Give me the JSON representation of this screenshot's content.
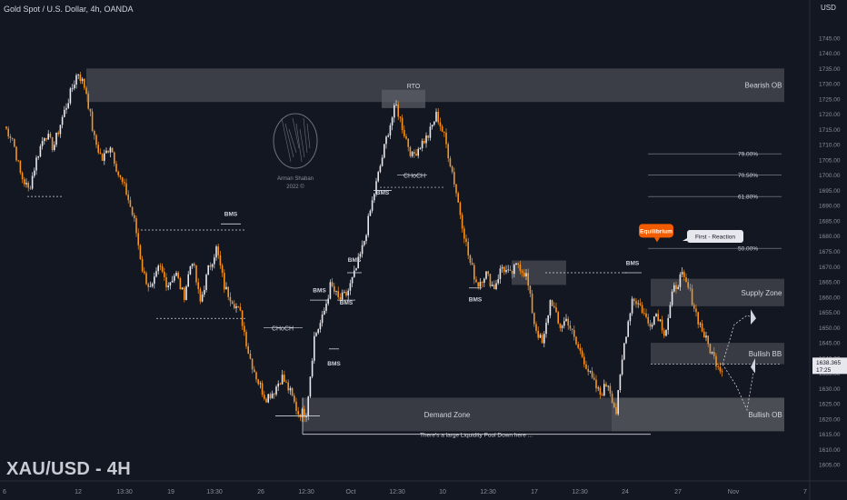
{
  "header": {
    "title": "Gold Spot / U.S. Dollar, 4h, OANDA",
    "currency": "USD"
  },
  "watermark": "XAU/USD - 4H",
  "logo": {
    "line1": "Arman Shaban",
    "line2": "2022 ©"
  },
  "colors": {
    "bg": "#131722",
    "bull": "#e8e8ec",
    "bear": "#f7931e",
    "zone": "#5d5f66",
    "axis": "#8a8e99"
  },
  "chart_data": {
    "type": "candlestick",
    "ylim": [
      1600,
      1750
    ],
    "yticks": [
      1605,
      1610,
      1615,
      1620,
      1625,
      1630,
      1635,
      1640,
      1645,
      1650,
      1655,
      1660,
      1665,
      1670,
      1675,
      1680,
      1685,
      1690,
      1695,
      1700,
      1705,
      1710,
      1715,
      1720,
      1725,
      1730,
      1735,
      1740,
      1745
    ],
    "xticks": [
      "6",
      "12",
      "13:30",
      "19",
      "13:30",
      "26",
      "12:30",
      "Oct",
      "12:30",
      "10",
      "12:30",
      "17",
      "12:30",
      "24",
      "27",
      "Nov",
      "7"
    ],
    "price_label": {
      "price": "1638.365",
      "time": "17:25",
      "value": 1638.365
    },
    "close_path": [
      1716,
      1712,
      1700,
      1695,
      1706,
      1714,
      1709,
      1718,
      1726,
      1734,
      1728,
      1712,
      1705,
      1710,
      1700,
      1694,
      1684,
      1668,
      1662,
      1670,
      1664,
      1668,
      1660,
      1673,
      1658,
      1669,
      1676,
      1663,
      1659,
      1654,
      1641,
      1633,
      1627,
      1629,
      1634,
      1629,
      1622,
      1622,
      1647,
      1653,
      1664,
      1659,
      1661,
      1668,
      1677,
      1690,
      1702,
      1714,
      1723,
      1714,
      1706,
      1710,
      1713,
      1720,
      1712,
      1700,
      1686,
      1672,
      1664,
      1668,
      1663,
      1670,
      1667,
      1671,
      1667,
      1651,
      1644,
      1660,
      1650,
      1653,
      1645,
      1640,
      1633,
      1628,
      1632,
      1622,
      1645,
      1660,
      1657,
      1651,
      1655,
      1648,
      1662,
      1667,
      1662,
      1653,
      1646,
      1640,
      1636
    ],
    "zones": [
      {
        "label": "Bearish OB",
        "top": 1735,
        "bottom": 1724
      },
      {
        "label": "Supply Zone",
        "top": 1666,
        "bottom": 1657
      },
      {
        "label": "Bullish BB",
        "top": 1645,
        "bottom": 1638
      },
      {
        "label": "Demand Zone",
        "top": 1627,
        "bottom": 1616
      },
      {
        "label": "Bullish OB",
        "top": 1627,
        "bottom": 1616
      }
    ],
    "small_zones": [
      {
        "label": "RTO",
        "top": 1728,
        "bottom": 1722
      },
      {
        "label": "",
        "top": 1672,
        "bottom": 1664
      }
    ],
    "fib_levels": [
      {
        "label": "79.00%",
        "value": 1707
      },
      {
        "label": "70.50%",
        "value": 1700
      },
      {
        "label": "61.80%",
        "value": 1693
      },
      {
        "label": "50.00%",
        "value": 1676
      }
    ],
    "structure_labels": [
      "BMS",
      "BMS",
      "BMS",
      "BMS",
      "BMS",
      "BMS",
      "BMS",
      "BMS",
      "BMS",
      "BMS",
      "CHoCH",
      "CHoCH"
    ],
    "annotations": {
      "equilibrium": "Equilibrium",
      "first_reaction": "First - Reaction",
      "liquidity": "There's a large Liquidity Pool Down here ..."
    }
  }
}
